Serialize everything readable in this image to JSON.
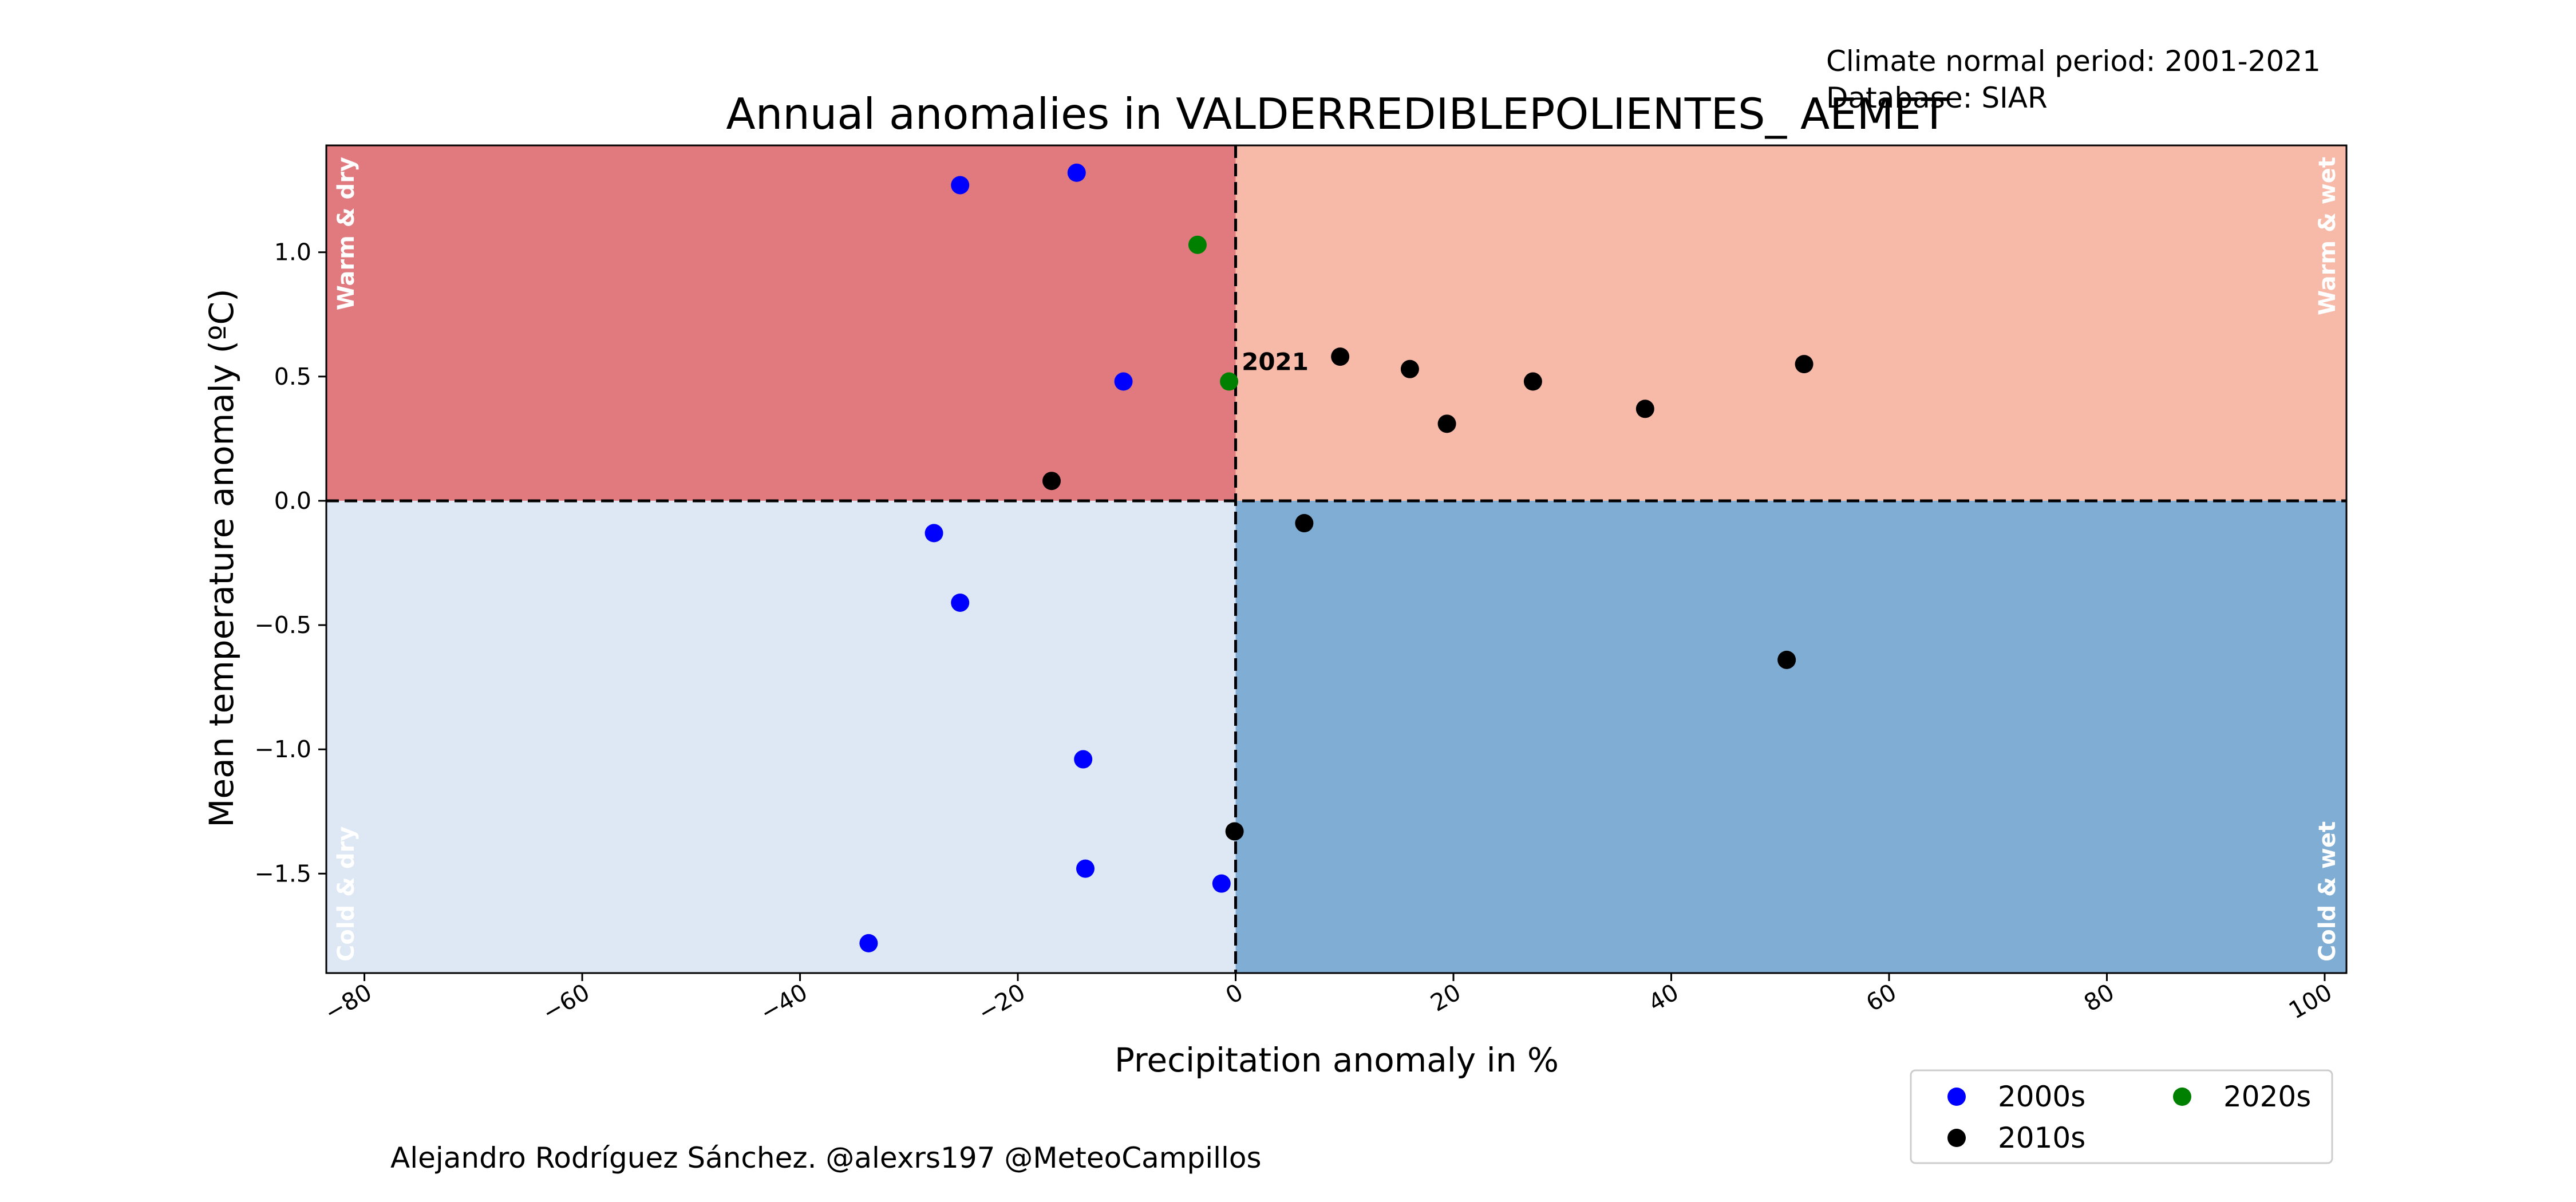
{
  "chart_data": {
    "type": "scatter",
    "title": "Annual anomalies in VALDERREDIBLEPOLIENTES_ AEMET",
    "xlabel": "Precipitation anomaly in %",
    "ylabel": "Mean temperature anomaly (ºC)",
    "xlim": [
      -83.5,
      102
    ],
    "ylim": [
      -1.9,
      1.43
    ],
    "xticks": [
      -80,
      -60,
      -40,
      -20,
      0,
      20,
      40,
      60,
      80,
      100
    ],
    "yticks": [
      -1.5,
      -1.0,
      -0.5,
      0.0,
      0.5,
      1.0
    ],
    "grid": false,
    "reference_lines": {
      "x": 0,
      "y": 0,
      "style": "dashed"
    },
    "quadrants": [
      {
        "label": "Warm & dry",
        "x_side": "negative",
        "y_side": "positive",
        "color": "#e17a7e"
      },
      {
        "label": "Warm & wet",
        "x_side": "positive",
        "y_side": "positive",
        "color": "#f7baa9"
      },
      {
        "label": "Cold & dry",
        "x_side": "negative",
        "y_side": "negative",
        "color": "#dde8f4"
      },
      {
        "label": "Cold & wet",
        "x_side": "positive",
        "y_side": "negative",
        "color": "#80add4"
      }
    ],
    "legend_position": "bottom-right",
    "series": [
      {
        "name": "2000s",
        "color": "#0000ff",
        "points": [
          {
            "x": -25.3,
            "y": 1.27
          },
          {
            "x": -14.6,
            "y": 1.32
          },
          {
            "x": -10.3,
            "y": 0.48
          },
          {
            "x": -27.7,
            "y": -0.13
          },
          {
            "x": -25.3,
            "y": -0.41
          },
          {
            "x": -14.0,
            "y": -1.04
          },
          {
            "x": -13.8,
            "y": -1.48
          },
          {
            "x": -1.3,
            "y": -1.54
          },
          {
            "x": -33.7,
            "y": -1.78
          }
        ]
      },
      {
        "name": "2010s",
        "color": "#000000",
        "points": [
          {
            "x": -16.9,
            "y": 0.08
          },
          {
            "x": 9.6,
            "y": 0.58
          },
          {
            "x": 16.0,
            "y": 0.53
          },
          {
            "x": 19.4,
            "y": 0.31
          },
          {
            "x": 27.3,
            "y": 0.48
          },
          {
            "x": 37.6,
            "y": 0.37
          },
          {
            "x": 52.2,
            "y": 0.55
          },
          {
            "x": 6.3,
            "y": -0.09
          },
          {
            "x": 50.6,
            "y": -0.64
          },
          {
            "x": -0.1,
            "y": -1.33
          }
        ]
      },
      {
        "name": "2020s",
        "color": "#008000",
        "points": [
          {
            "x": -3.5,
            "y": 1.03
          },
          {
            "x": -0.6,
            "y": 0.48
          }
        ]
      }
    ],
    "annotations": [
      {
        "text": "2021",
        "x": -0.6,
        "y": 0.48
      }
    ]
  },
  "notes": {
    "normal_period": "Climate normal period: 2001-2021",
    "database": "Database: SIAR",
    "credit": "Alejandro Rodríguez Sánchez. @alexrs197 @MeteoCampillos"
  }
}
